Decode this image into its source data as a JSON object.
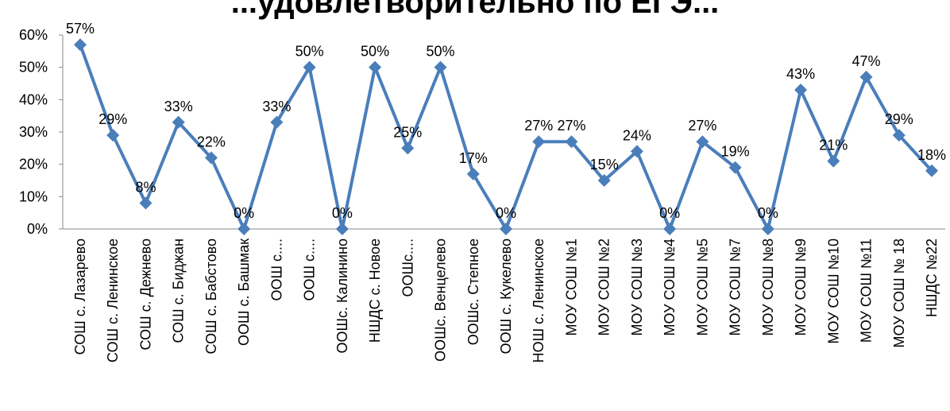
{
  "chart_data": {
    "type": "line",
    "title": "...удовлетворительно по ЕГЭ...",
    "xlabel": "",
    "ylabel": "",
    "ylim": [
      0,
      0.6
    ],
    "y_ticks": [
      "0%",
      "10%",
      "20%",
      "30%",
      "40%",
      "50%",
      "60%"
    ],
    "grid": false,
    "legend": "none",
    "series_color": "#4A7EBB",
    "categories": [
      "СОШ с. Лазарево",
      "СОШ с. Ленинское",
      "СОШ с. Дежнево",
      "СОШ с. Биджан",
      "СОШ с. Бабстово",
      "ООШ с. Башмак",
      "ООШ с....",
      "ООШ с....",
      "ООШс. Калинино",
      "НШДС с. Новое",
      "ООШс....",
      "ООШс. Венцелево",
      "ООШс. Степное",
      "ООШ с. Кукелево",
      "НОШ с. Ленинское",
      "МОУ СОШ №1",
      "МОУ СОШ №2",
      "МОУ СОШ №3",
      "МОУ СОШ №4",
      "МОУ СОШ №5",
      "МОУ СОШ №7",
      "МОУ СОШ №8",
      "МОУ СОШ №9",
      "МОУ СОШ №10",
      "МОУ СОШ №11",
      "МОУ СОШ № 18",
      "НШДС №22"
    ],
    "values": [
      0.57,
      0.29,
      0.08,
      0.33,
      0.22,
      0.0,
      0.33,
      0.5,
      0.0,
      0.5,
      0.25,
      0.5,
      0.17,
      0.0,
      0.27,
      0.27,
      0.15,
      0.24,
      0.0,
      0.27,
      0.19,
      0.0,
      0.43,
      0.21,
      0.47,
      0.29,
      0.18
    ],
    "data_labels": [
      "57%",
      "29%",
      "8%",
      "33%",
      "22%",
      "0%",
      "33%",
      "50%",
      "0%",
      "50%",
      "25%",
      "50%",
      "17%",
      "0%",
      "27%",
      "27%",
      "15%",
      "24%",
      "0%",
      "27%",
      "19%",
      "0%",
      "43%",
      "21%",
      "47%",
      "29%",
      "18%"
    ]
  }
}
